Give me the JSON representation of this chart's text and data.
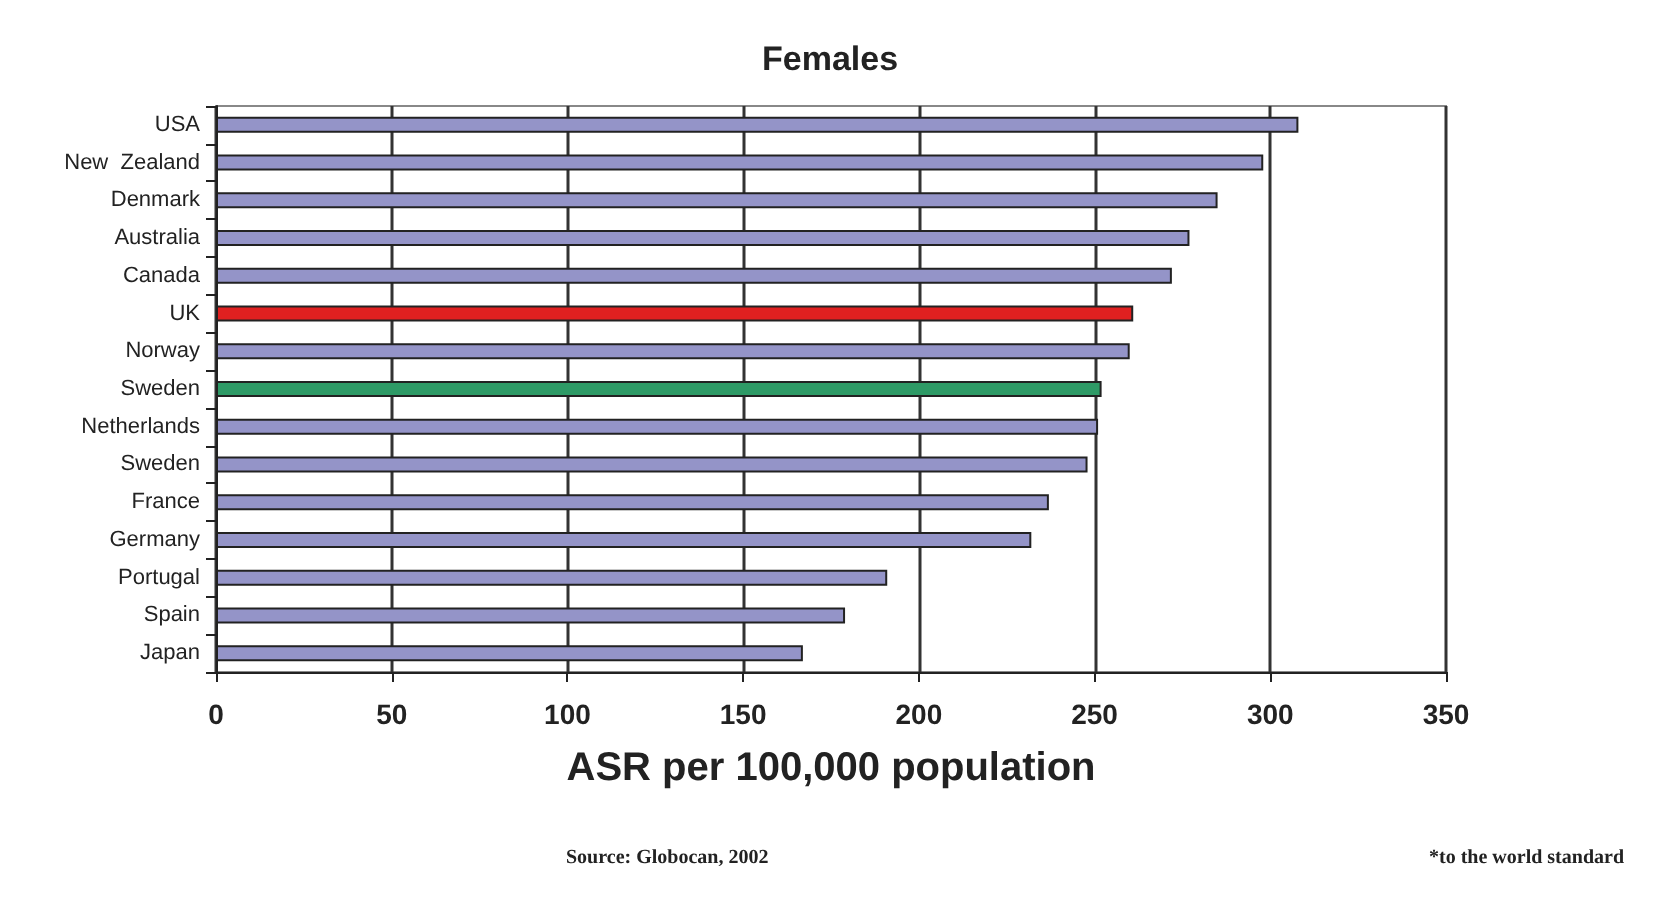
{
  "chart_data": {
    "type": "bar",
    "orientation": "horizontal",
    "title": "Females",
    "xlabel": "ASR per 100,000 population",
    "categories": [
      "USA",
      "New  Zealand",
      "Denmark",
      "Australia",
      "Canada",
      "UK",
      "Norway",
      "Sweden",
      "Netherlands",
      "Sweden",
      "France",
      "Germany",
      "Portugal",
      "Spain",
      "Japan"
    ],
    "values": [
      308,
      298,
      285,
      277,
      272,
      261,
      260,
      252,
      251,
      248,
      237,
      232,
      191,
      179,
      167
    ],
    "colors": [
      "#9494c8",
      "#9494c8",
      "#9494c8",
      "#9494c8",
      "#9494c8",
      "#e02020",
      "#9494c8",
      "#2e9a66",
      "#9494c8",
      "#9494c8",
      "#9494c8",
      "#9494c8",
      "#9494c8",
      "#9494c8",
      "#9494c8"
    ],
    "xlim": [
      0,
      350
    ],
    "xticks": [
      0,
      50,
      100,
      150,
      200,
      250,
      300,
      350
    ],
    "grid": "x",
    "annotations": [
      "Source: Globocan, 2002",
      "*to the world standard"
    ]
  }
}
